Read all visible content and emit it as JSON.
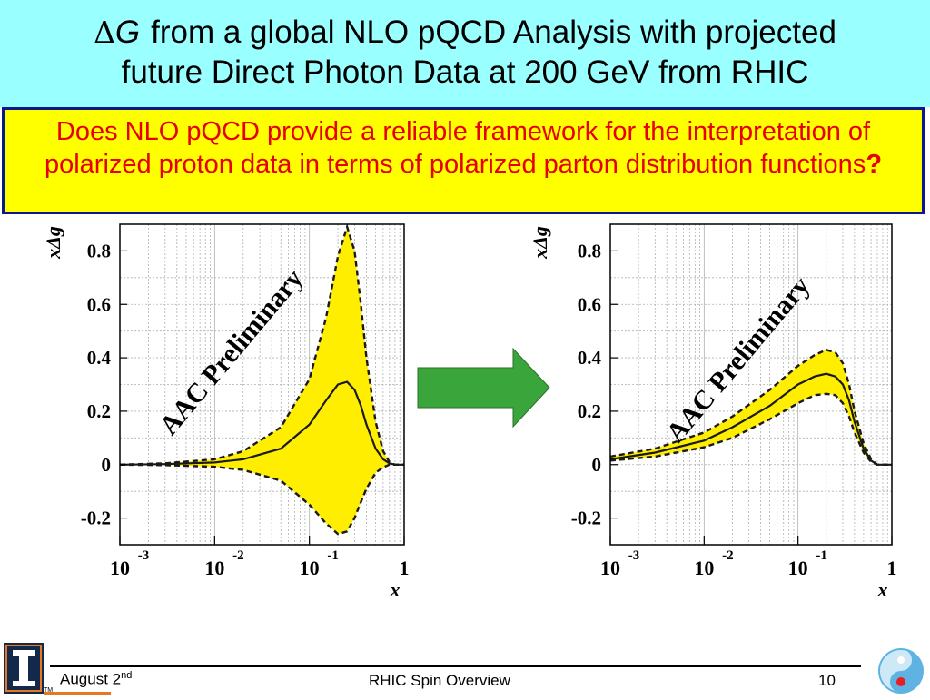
{
  "slide": {
    "title_delta": "Δ",
    "title_g": "G",
    "title_line1": "from a global NLO pQCD Analysis with projected",
    "title_line2": "future Direct Photon Data at 200 GeV from RHIC",
    "question": "Does NLO pQCD provide a reliable framework for the interpretation of polarized proton data in terms of polarized parton distribution functions",
    "question_mark": "?"
  },
  "footer": {
    "date": "August 2",
    "date_sup": "nd",
    "title": "RHIC Spin Overview",
    "page": "10",
    "tm": "TM"
  },
  "colors": {
    "header_bg": "#99ffff",
    "question_bg": "#ffff00",
    "question_text": "#e60000",
    "band_fill": "#ffee00",
    "arrow_fill": "#3aa53a"
  },
  "chart_data": [
    {
      "type": "line",
      "ylabel": "xΔg",
      "xlabel": "x",
      "xscale": "log",
      "xlim": [
        0.001,
        1
      ],
      "ylim": [
        -0.3,
        0.9
      ],
      "yticks": [
        "0.8",
        "0.6",
        "0.4",
        "0.2",
        "0",
        "-0.2"
      ],
      "xticks": [
        {
          "base": "10",
          "exp": "-3"
        },
        {
          "base": "10",
          "exp": "-2"
        },
        {
          "base": "10",
          "exp": "-1"
        },
        {
          "base": "1",
          "exp": ""
        }
      ],
      "annotation": "AAC Preliminary",
      "grid": true,
      "series": [
        {
          "role": "upper",
          "style": "dashed",
          "x": [
            0.001,
            0.003,
            0.01,
            0.02,
            0.05,
            0.1,
            0.15,
            0.2,
            0.25,
            0.3,
            0.35,
            0.4,
            0.5,
            0.6,
            0.7,
            0.8,
            1.0
          ],
          "y": [
            0.0,
            0.005,
            0.02,
            0.05,
            0.14,
            0.32,
            0.55,
            0.78,
            0.89,
            0.8,
            0.6,
            0.4,
            0.16,
            0.05,
            0.01,
            0.0,
            0.0
          ]
        },
        {
          "role": "central",
          "style": "solid",
          "x": [
            0.001,
            0.003,
            0.01,
            0.02,
            0.05,
            0.1,
            0.15,
            0.2,
            0.25,
            0.3,
            0.35,
            0.4,
            0.5,
            0.6,
            0.7,
            0.8,
            1.0
          ],
          "y": [
            0.0,
            0.002,
            0.008,
            0.02,
            0.06,
            0.15,
            0.24,
            0.3,
            0.31,
            0.28,
            0.22,
            0.15,
            0.06,
            0.02,
            0.005,
            0.0,
            0.0
          ]
        },
        {
          "role": "lower",
          "style": "dashed",
          "x": [
            0.001,
            0.003,
            0.01,
            0.02,
            0.05,
            0.1,
            0.15,
            0.2,
            0.25,
            0.3,
            0.35,
            0.4,
            0.5,
            0.6,
            0.7,
            0.8,
            1.0
          ],
          "y": [
            0.0,
            -0.002,
            -0.008,
            -0.02,
            -0.06,
            -0.15,
            -0.22,
            -0.26,
            -0.25,
            -0.2,
            -0.14,
            -0.09,
            -0.03,
            -0.01,
            0.0,
            0.0,
            0.0
          ]
        }
      ]
    },
    {
      "type": "line",
      "ylabel": "xΔg",
      "xlabel": "x",
      "xscale": "log",
      "xlim": [
        0.001,
        1
      ],
      "ylim": [
        -0.3,
        0.9
      ],
      "yticks": [
        "0.8",
        "0.6",
        "0.4",
        "0.2",
        "0",
        "-0.2"
      ],
      "xticks": [
        {
          "base": "10",
          "exp": "-3"
        },
        {
          "base": "10",
          "exp": "-2"
        },
        {
          "base": "10",
          "exp": "-1"
        },
        {
          "base": "1",
          "exp": ""
        }
      ],
      "annotation": "AAC Preliminary",
      "grid": true,
      "series": [
        {
          "role": "upper",
          "style": "dashed",
          "x": [
            0.001,
            0.003,
            0.01,
            0.02,
            0.05,
            0.1,
            0.15,
            0.2,
            0.25,
            0.3,
            0.35,
            0.4,
            0.5,
            0.6,
            0.7,
            0.8,
            1.0
          ],
          "y": [
            0.03,
            0.06,
            0.12,
            0.18,
            0.28,
            0.37,
            0.41,
            0.43,
            0.42,
            0.38,
            0.3,
            0.2,
            0.08,
            0.02,
            0.0,
            0.0,
            0.0
          ]
        },
        {
          "role": "central",
          "style": "solid",
          "x": [
            0.001,
            0.003,
            0.01,
            0.02,
            0.05,
            0.1,
            0.15,
            0.2,
            0.25,
            0.3,
            0.35,
            0.4,
            0.5,
            0.6,
            0.7,
            0.8,
            1.0
          ],
          "y": [
            0.02,
            0.045,
            0.09,
            0.14,
            0.22,
            0.3,
            0.33,
            0.34,
            0.33,
            0.3,
            0.24,
            0.16,
            0.06,
            0.015,
            0.0,
            0.0,
            0.0
          ]
        },
        {
          "role": "lower",
          "style": "dashed",
          "x": [
            0.001,
            0.003,
            0.01,
            0.02,
            0.05,
            0.1,
            0.15,
            0.2,
            0.25,
            0.3,
            0.35,
            0.4,
            0.5,
            0.6,
            0.7,
            0.8,
            1.0
          ],
          "y": [
            0.015,
            0.03,
            0.065,
            0.1,
            0.17,
            0.23,
            0.26,
            0.265,
            0.26,
            0.23,
            0.18,
            0.12,
            0.045,
            0.01,
            0.0,
            0.0,
            0.0
          ]
        }
      ]
    }
  ]
}
